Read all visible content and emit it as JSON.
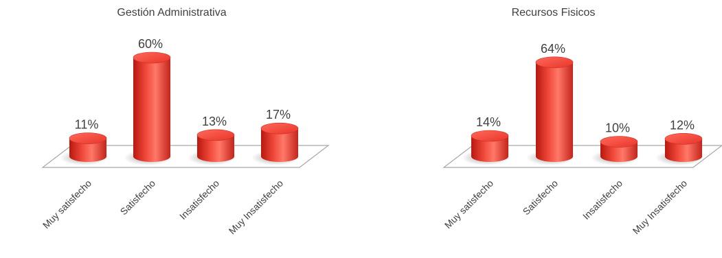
{
  "chart_data": [
    {
      "type": "bar",
      "title": "Gestión Administrativa",
      "categories": [
        "Muy satisfecho",
        "Satisfecho",
        "Insatisfecho",
        "Muy Insatisfecho"
      ],
      "values": [
        11,
        60,
        13,
        17
      ],
      "data_labels": [
        "11%",
        "60%",
        "13%",
        "17%"
      ],
      "ylim": [
        0,
        70
      ],
      "bar_style": "3d-cylinder",
      "bar_color": "#ee3a2e",
      "grid": false,
      "legend": "none"
    },
    {
      "type": "bar",
      "title": "Recursos Fisicos",
      "categories": [
        "Muy satisfecho",
        "Satisfecho",
        "Insatisfecho",
        "Muy Insatisfecho"
      ],
      "values": [
        14,
        64,
        10,
        12
      ],
      "data_labels": [
        "14%",
        "64%",
        "10%",
        "12%"
      ],
      "ylim": [
        0,
        70
      ],
      "bar_style": "3d-cylinder",
      "bar_color": "#ee3a2e",
      "grid": false,
      "legend": "none"
    }
  ]
}
